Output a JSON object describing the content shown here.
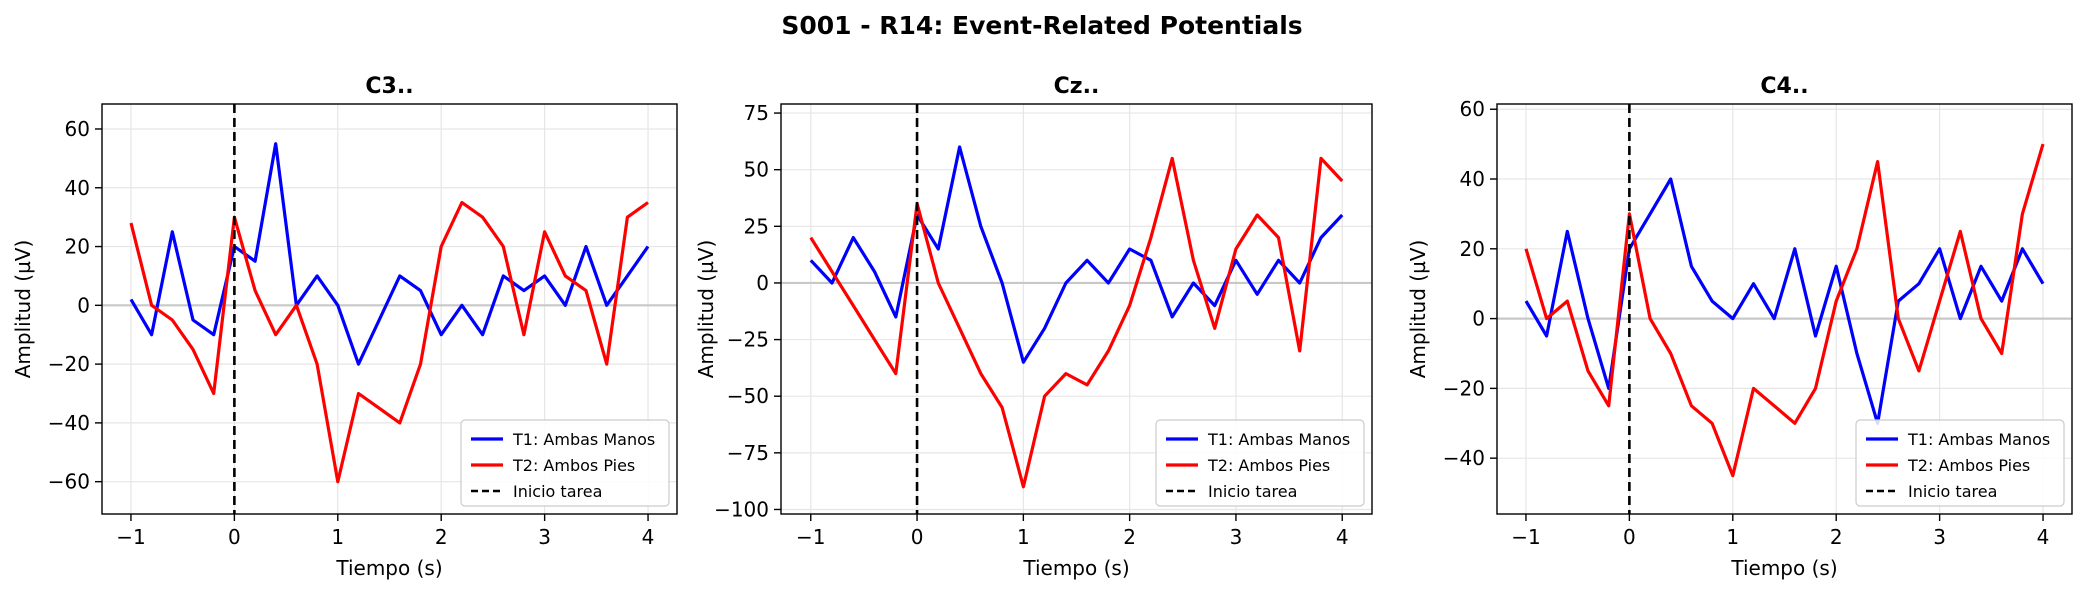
{
  "figure": {
    "title": "S001 - R14: Event-Related Potentials"
  },
  "chart_data": [
    {
      "type": "line",
      "title": "C3..",
      "xlabel": "Tiempo (s)",
      "ylabel": "Amplitud (µV)",
      "xlim": [
        -1.28,
        4.28
      ],
      "ylim": [
        -71,
        68.5
      ],
      "xticks": [
        -1,
        0,
        1,
        2,
        3,
        4
      ],
      "xtick_labels": [
        "−1",
        "0",
        "1",
        "2",
        "3",
        "4"
      ],
      "yticks": [
        -60,
        -40,
        -20,
        0,
        20,
        40,
        60
      ],
      "ytick_labels": [
        "−60",
        "−40",
        "−20",
        "0",
        "20",
        "40",
        "60"
      ],
      "grid": true,
      "zero_line": 0,
      "event_marker_x": 0,
      "legend_position": "lower-right",
      "x": [
        -1.0,
        -0.8,
        -0.6,
        -0.4,
        -0.2,
        0.0,
        0.2,
        0.4,
        0.6,
        0.8,
        1.0,
        1.2,
        1.4,
        1.6,
        1.8,
        2.0,
        2.2,
        2.4,
        2.6,
        2.8,
        3.0,
        3.2,
        3.4,
        3.6,
        3.8,
        4.0
      ],
      "series": [
        {
          "name": "T1: Ambas Manos",
          "color": "#0000ff",
          "values": [
            2,
            -10,
            25,
            -5,
            -10,
            20,
            15,
            55,
            0,
            10,
            0,
            -20,
            -5,
            10,
            5,
            -10,
            0,
            -10,
            10,
            5,
            10,
            0,
            20,
            0,
            10,
            20
          ]
        },
        {
          "name": "T2: Ambos Pies",
          "color": "#ff0000",
          "values": [
            28,
            0,
            -5,
            -15,
            -30,
            30,
            5,
            -10,
            0,
            -20,
            -60,
            -30,
            -35,
            -40,
            -20,
            20,
            35,
            30,
            20,
            -10,
            25,
            10,
            5,
            -20,
            30,
            35
          ]
        }
      ]
    },
    {
      "type": "line",
      "title": "Cz..",
      "xlabel": "Tiempo (s)",
      "ylabel": "Amplitud (µV)",
      "xlim": [
        -1.28,
        4.28
      ],
      "ylim": [
        -102,
        79
      ],
      "xticks": [
        -1,
        0,
        1,
        2,
        3,
        4
      ],
      "xtick_labels": [
        "−1",
        "0",
        "1",
        "2",
        "3",
        "4"
      ],
      "yticks": [
        -100,
        -75,
        -50,
        -25,
        0,
        25,
        50,
        75
      ],
      "ytick_labels": [
        "−100",
        "−75",
        "−50",
        "−25",
        "0",
        "25",
        "50",
        "75"
      ],
      "grid": true,
      "zero_line": 0,
      "event_marker_x": 0,
      "legend_position": "lower-right",
      "x": [
        -1.0,
        -0.8,
        -0.6,
        -0.4,
        -0.2,
        0.0,
        0.2,
        0.4,
        0.6,
        0.8,
        1.0,
        1.2,
        1.4,
        1.6,
        1.8,
        2.0,
        2.2,
        2.4,
        2.6,
        2.8,
        3.0,
        3.2,
        3.4,
        3.6,
        3.8,
        4.0
      ],
      "series": [
        {
          "name": "T1: Ambas Manos",
          "color": "#0000ff",
          "values": [
            10,
            0,
            20,
            5,
            -15,
            30,
            15,
            60,
            25,
            0,
            -35,
            -20,
            0,
            10,
            0,
            15,
            10,
            -15,
            0,
            -10,
            10,
            -5,
            10,
            0,
            20,
            30
          ]
        },
        {
          "name": "T2: Ambos Pies",
          "color": "#ff0000",
          "values": [
            20,
            5,
            -10,
            -25,
            -40,
            35,
            0,
            -20,
            -40,
            -55,
            -90,
            -50,
            -40,
            -45,
            -30,
            -10,
            20,
            55,
            10,
            -20,
            15,
            30,
            20,
            -30,
            55,
            45
          ]
        }
      ]
    },
    {
      "type": "line",
      "title": "C4..",
      "xlabel": "Tiempo (s)",
      "ylabel": "Amplitud (µV)",
      "xlim": [
        -1.28,
        4.28
      ],
      "ylim": [
        -56,
        61.5
      ],
      "xticks": [
        -1,
        0,
        1,
        2,
        3,
        4
      ],
      "xtick_labels": [
        "−1",
        "0",
        "1",
        "2",
        "3",
        "4"
      ],
      "yticks": [
        -40,
        -20,
        0,
        20,
        40,
        60
      ],
      "ytick_labels": [
        "−40",
        "−20",
        "0",
        "20",
        "40",
        "60"
      ],
      "grid": true,
      "zero_line": 0,
      "event_marker_x": 0,
      "legend_position": "lower-right",
      "x": [
        -1.0,
        -0.8,
        -0.6,
        -0.4,
        -0.2,
        0.0,
        0.2,
        0.4,
        0.6,
        0.8,
        1.0,
        1.2,
        1.4,
        1.6,
        1.8,
        2.0,
        2.2,
        2.4,
        2.6,
        2.8,
        3.0,
        3.2,
        3.4,
        3.6,
        3.8,
        4.0
      ],
      "series": [
        {
          "name": "T1: Ambas Manos",
          "color": "#0000ff",
          "values": [
            5,
            -5,
            25,
            0,
            -20,
            20,
            30,
            40,
            15,
            5,
            0,
            10,
            0,
            20,
            -5,
            15,
            -10,
            -30,
            5,
            10,
            20,
            0,
            15,
            5,
            20,
            10
          ]
        },
        {
          "name": "T2: Ambos Pies",
          "color": "#ff0000",
          "values": [
            20,
            0,
            5,
            -15,
            -25,
            30,
            0,
            -10,
            -25,
            -30,
            -45,
            -20,
            -25,
            -30,
            -20,
            5,
            20,
            45,
            0,
            -15,
            5,
            25,
            0,
            -10,
            30,
            50
          ]
        }
      ]
    }
  ],
  "legend_labels": {
    "t1": "T1: Ambas Manos",
    "t2": "T2: Ambos Pies",
    "event": "Inicio tarea"
  },
  "colors": {
    "t1": "#0000ff",
    "t2": "#ff0000",
    "event": "#000000",
    "grid": "#e6e6e6",
    "zero_line": "#c8c8c8"
  }
}
